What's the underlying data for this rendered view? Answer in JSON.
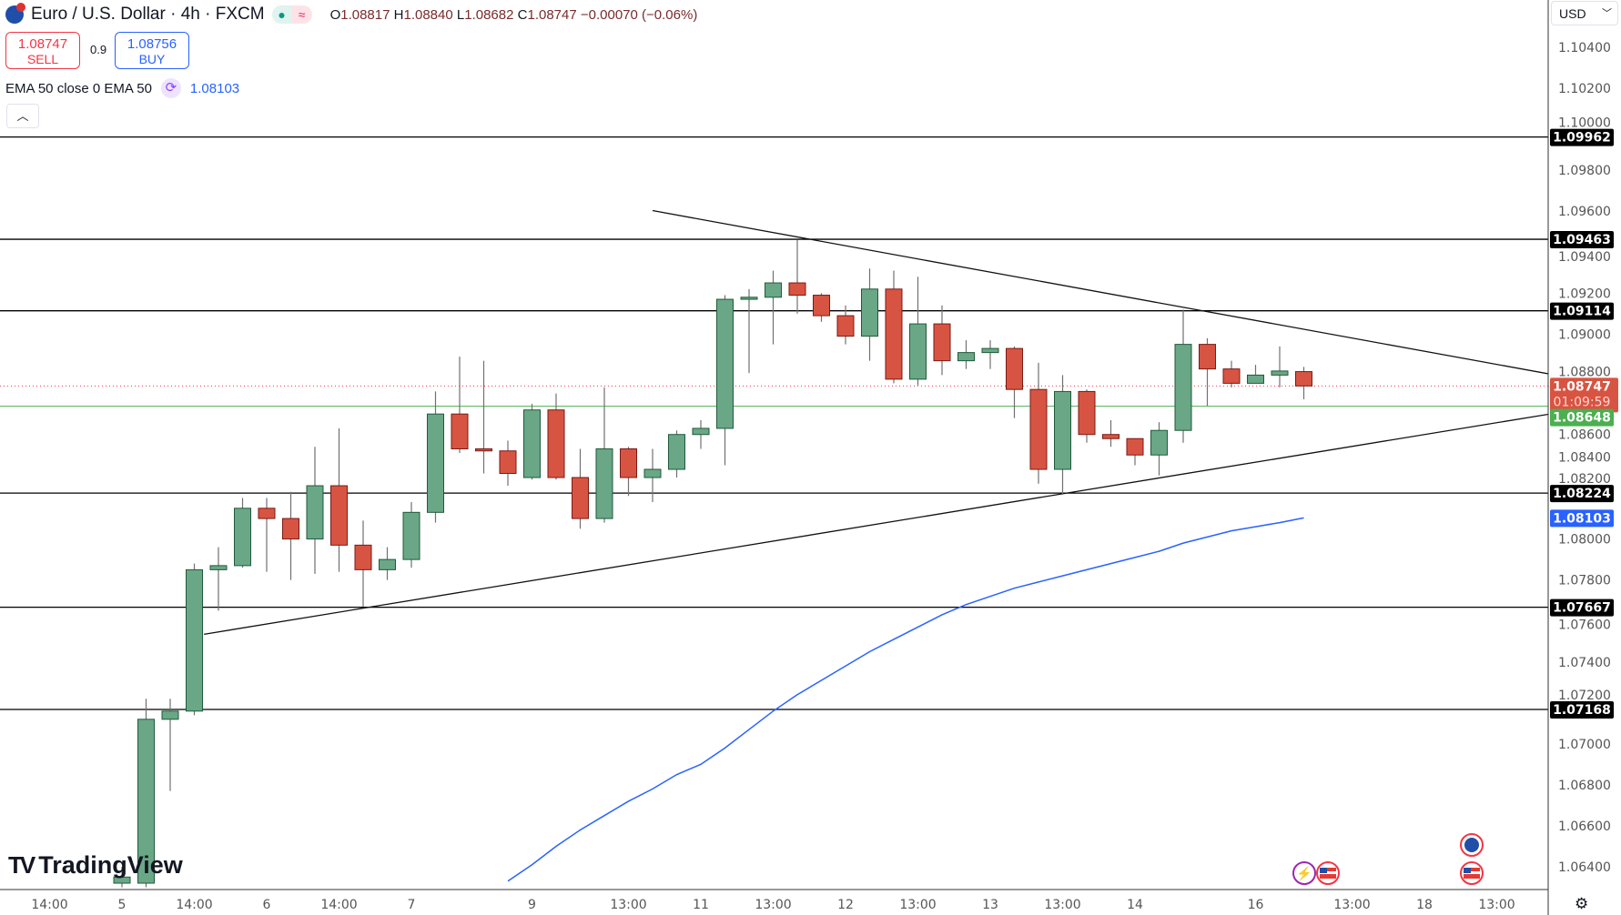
{
  "header": {
    "symbol": "Euro / U.S. Dollar · 4h · FXCM",
    "open_label": "O",
    "open": "1.08817",
    "high_label": "H",
    "high": "1.08840",
    "low_label": "L",
    "low": "1.08682",
    "close_label": "C",
    "close": "1.08747",
    "change": "−0.00070 (−0.06%)",
    "market_status_icon": "market-open-dot",
    "data_icon": "approx-icon"
  },
  "trade": {
    "sell_price": "1.08747",
    "sell_label": "SELL",
    "spread": "0.9",
    "buy_price": "1.08756",
    "buy_label": "BUY"
  },
  "indicator": {
    "label": "EMA 50 close 0 EMA 50",
    "value": "1.08103",
    "icon": "sync-icon"
  },
  "collapse_icon": "chevron-up-icon",
  "currency": "USD",
  "logo_text": "TradingView",
  "colors": {
    "up": "#6aa786",
    "up_border": "#1f5a3a",
    "down": "#d85442",
    "down_border": "#7a1a14",
    "ema": "#2962ff",
    "current": "#f23645",
    "green_line": "#4caf50",
    "label_bg": "#000000"
  },
  "chart_data": {
    "type": "candlestick",
    "timeframe": "4h",
    "ylim": [
      1.0626,
      1.1058
    ],
    "y_ticks": [
      "1.10400",
      "1.10200",
      "1.10000",
      "1.09800",
      "1.09600",
      "1.09400",
      "1.09200",
      "1.09000",
      "1.08800",
      "1.08600",
      "1.08400",
      "1.08200",
      "1.08000",
      "1.07800",
      "1.07600",
      "1.07400",
      "1.07200",
      "1.07000",
      "1.06800",
      "1.06600",
      "1.06400"
    ],
    "x_ticks": [
      "14:00",
      "5",
      "14:00",
      "6",
      "14:00",
      "7",
      "9",
      "13:00",
      "11",
      "13:00",
      "12",
      "13:00",
      "13",
      "13:00",
      "14",
      "16",
      "13:00",
      "18",
      "13:00"
    ],
    "candles": [
      [
        1.0632,
        1.064,
        1.063,
        1.0635
      ],
      [
        1.0632,
        1.0722,
        1.063,
        1.0712
      ],
      [
        1.0712,
        1.0722,
        1.0677,
        1.0716
      ],
      [
        1.0716,
        1.0788,
        1.0714,
        1.0785
      ],
      [
        1.0785,
        1.0796,
        1.0765,
        1.0787
      ],
      [
        1.0787,
        1.082,
        1.0786,
        1.0815
      ],
      [
        1.0815,
        1.082,
        1.0784,
        1.081
      ],
      [
        1.081,
        1.0823,
        1.078,
        1.08
      ],
      [
        1.08,
        1.0845,
        1.0783,
        1.0826
      ],
      [
        1.0826,
        1.0854,
        1.0784,
        1.0797
      ],
      [
        1.0797,
        1.0809,
        1.0767,
        1.0785
      ],
      [
        1.0785,
        1.0796,
        1.078,
        1.079
      ],
      [
        1.079,
        1.0818,
        1.0786,
        1.0813
      ],
      [
        1.0813,
        1.0872,
        1.0808,
        1.0861
      ],
      [
        1.0861,
        1.0889,
        1.0842,
        1.0844
      ],
      [
        1.0844,
        1.0887,
        1.0832,
        1.0843
      ],
      [
        1.0843,
        1.0848,
        1.0826,
        1.0832
      ],
      [
        1.083,
        1.0866,
        1.0829,
        1.0863
      ],
      [
        1.0863,
        1.0871,
        1.0829,
        1.083
      ],
      [
        1.083,
        1.0844,
        1.0805,
        1.081
      ],
      [
        1.081,
        1.0874,
        1.0808,
        1.0844
      ],
      [
        1.0844,
        1.0845,
        1.0821,
        1.083
      ],
      [
        1.083,
        1.0844,
        1.0818,
        1.0834
      ],
      [
        1.0834,
        1.0853,
        1.083,
        1.0851
      ],
      [
        1.0851,
        1.0858,
        1.0844,
        1.0854
      ],
      [
        1.0854,
        1.0919,
        1.0836,
        1.0917
      ],
      [
        1.0917,
        1.0922,
        1.0881,
        1.0918
      ],
      [
        1.0918,
        1.0931,
        1.0895,
        1.0925
      ],
      [
        1.0925,
        1.0946,
        1.091,
        1.0919
      ],
      [
        1.0919,
        1.092,
        1.0906,
        1.0909
      ],
      [
        1.0909,
        1.0914,
        1.0895,
        1.0899
      ],
      [
        1.0899,
        1.0932,
        1.0887,
        1.0922
      ],
      [
        1.0922,
        1.0931,
        1.0876,
        1.0878
      ],
      [
        1.0878,
        1.0928,
        1.0875,
        1.0905
      ],
      [
        1.0905,
        1.0914,
        1.088,
        1.0887
      ],
      [
        1.0887,
        1.0897,
        1.0883,
        1.0891
      ],
      [
        1.0891,
        1.0897,
        1.0883,
        1.0893
      ],
      [
        1.0893,
        1.0894,
        1.0859,
        1.0873
      ],
      [
        1.0873,
        1.0886,
        1.0827,
        1.0834
      ],
      [
        1.0834,
        1.088,
        1.0822,
        1.0872
      ],
      [
        1.0872,
        1.0873,
        1.0847,
        1.0851
      ],
      [
        1.0851,
        1.0858,
        1.0845,
        1.0849
      ],
      [
        1.0849,
        1.0849,
        1.0836,
        1.0841
      ],
      [
        1.0841,
        1.0857,
        1.0831,
        1.0853
      ],
      [
        1.0853,
        1.0912,
        1.0847,
        1.0895
      ],
      [
        1.0895,
        1.0898,
        1.0865,
        1.0883
      ],
      [
        1.0883,
        1.0887,
        1.0874,
        1.0876
      ],
      [
        1.0876,
        1.0885,
        1.0876,
        1.088
      ],
      [
        1.088,
        1.0894,
        1.0874,
        1.0882
      ],
      [
        1.08817,
        1.0884,
        1.08682,
        1.08747
      ]
    ],
    "candle_format": [
      "open",
      "high",
      "low",
      "close"
    ],
    "ema50": [
      null,
      null,
      null,
      null,
      null,
      null,
      null,
      null,
      null,
      null,
      null,
      null,
      null,
      null,
      null,
      null,
      1.0633,
      1.0641,
      1.065,
      1.0658,
      1.0665,
      1.0672,
      1.0678,
      1.0685,
      1.069,
      1.0698,
      1.0707,
      1.0716,
      1.0724,
      1.0731,
      1.0738,
      1.0745,
      1.0751,
      1.0757,
      1.0763,
      1.0768,
      1.0772,
      1.0776,
      1.0779,
      1.0782,
      1.0785,
      1.0788,
      1.0791,
      1.0794,
      1.0798,
      1.0801,
      1.0804,
      1.0806,
      1.0808,
      1.08103
    ],
    "horizontal_levels": [
      "1.09962",
      "1.09463",
      "1.09114",
      "1.08224",
      "1.07667",
      "1.07168"
    ],
    "trendlines": [
      {
        "from": {
          "candle": 23,
          "price": 1.09603
        },
        "to": {
          "candle": 60.15,
          "price": 1.08806
        }
      },
      {
        "from": {
          "candle": 4.4,
          "price": 1.07535
        },
        "to": {
          "candle": 60.15,
          "price": 1.08609
        }
      }
    ],
    "current_price": "1.08747",
    "countdown": "01:09:59",
    "green_line_price": "1.08648",
    "ema_label": "1.08103",
    "events": [
      "lightning-event-icon",
      "us-flag-event-icon",
      "eu-flag-event-icon",
      "us-flag-event-icon"
    ]
  }
}
